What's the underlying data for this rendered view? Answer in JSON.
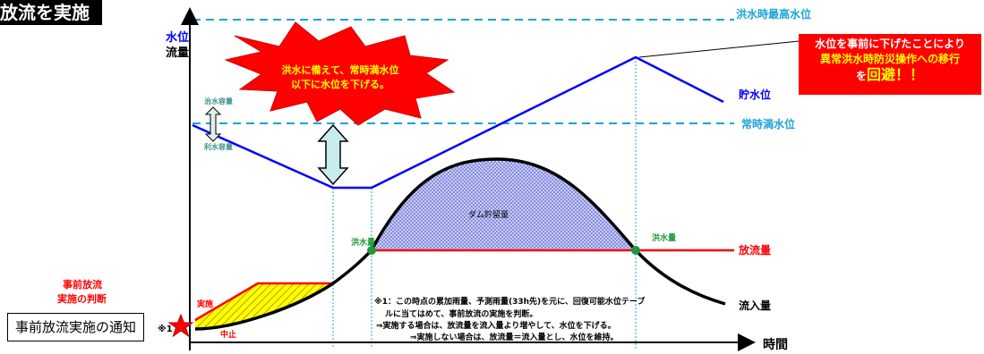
{
  "header": {
    "title": "放流を実施"
  },
  "axes": {
    "y_label_level": "水位",
    "y_label_flow": "流量",
    "x_label": "時間"
  },
  "levels": {
    "flood_max": "洪水時最高水位",
    "normal_full": "常時満水位",
    "storage": "貯水位",
    "discharge": "放流量",
    "inflow": "流入量",
    "flood_flow_left": "洪水量",
    "flood_flow_right": "洪水量",
    "dam_storage": "ダム貯留量",
    "flood_capacity": "治水容量",
    "water_use_capacity": "利水容量"
  },
  "burst": {
    "line1": "洪水に備えて、常時満水位",
    "line2": "以下に水位を下げる。"
  },
  "callout": {
    "line1": "水位を事前に下げたことにより",
    "line2": "異常洪水時防災操作への移行",
    "line3_prefix": "を",
    "line3_emph": "回避！！"
  },
  "decision": {
    "line1": "事前放流",
    "line2": "実施の判断"
  },
  "labels": {
    "jisshi": "実施",
    "chushi": "中止",
    "marker": "※1"
  },
  "notice": "事前放流実施の通知",
  "note": {
    "line1": "※1：この時点の累加雨量、予測雨量(33h先)を元に、回復可能水位テーブ",
    "line2": "ルに当てはめて、事前放流の実施を判断。",
    "line3": "⇒実施する場合は、放流量を流入量より増やして、水位を下げる。",
    "line4": "⇒実施しない場合は、放流量＝流入量とし、水位を維持。"
  },
  "colors": {
    "storage": "#0000ff",
    "discharge": "#ff0000",
    "inflow": "#000000",
    "dashed": "#1aa3d9",
    "teal": "#3a8f8f",
    "callout_bg": "#ff0000",
    "burst_yellow": "#ffff00"
  }
}
